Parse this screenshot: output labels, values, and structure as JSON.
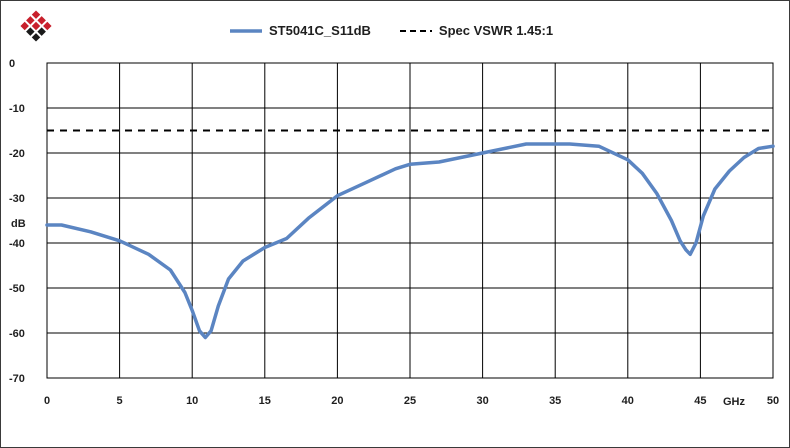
{
  "chart_data": {
    "type": "line",
    "title": "",
    "xlabel": "",
    "ylabel": "dB",
    "x_unit_label": "GHz",
    "xlim": [
      0,
      50
    ],
    "ylim": [
      -70,
      0
    ],
    "x_ticks": [
      0,
      5,
      10,
      15,
      20,
      25,
      30,
      35,
      40,
      45,
      50
    ],
    "y_ticks": [
      0,
      -10,
      -20,
      -30,
      -40,
      -50,
      -60,
      -70
    ],
    "grid": true,
    "legend_position": "top",
    "series": [
      {
        "name": "ST5041C_S11dB",
        "style": "solid",
        "color": "#5b85c2",
        "x": [
          0,
          1,
          3,
          5,
          7,
          8.5,
          9.5,
          10,
          10.5,
          10.9,
          11.3,
          11.8,
          12.5,
          13.5,
          15,
          16.5,
          18,
          20,
          22,
          24,
          25,
          27,
          30,
          33,
          36,
          38,
          40,
          41,
          42,
          43,
          43.6,
          44,
          44.3,
          44.7,
          45.2,
          46,
          47,
          48,
          49,
          50
        ],
        "y": [
          -36,
          -36,
          -37.5,
          -39.5,
          -42.5,
          -46,
          -51,
          -55,
          -59.5,
          -61,
          -59.5,
          -54,
          -48,
          -44,
          -41,
          -39,
          -34.5,
          -29.5,
          -26.5,
          -23.5,
          -22.5,
          -22,
          -20,
          -18,
          -18,
          -18.5,
          -21.5,
          -24.5,
          -29,
          -35,
          -39.5,
          -41.5,
          -42.5,
          -40,
          -34,
          -28,
          -24,
          -21,
          -19,
          -18.5
        ]
      },
      {
        "name": "Spec VSWR 1.45:1",
        "style": "dashed",
        "color": "#000000",
        "x": [
          0,
          50
        ],
        "y": [
          -15,
          -15
        ]
      }
    ]
  },
  "logo": {
    "icon": "diamond-logo-icon",
    "color": "#c8202c"
  }
}
